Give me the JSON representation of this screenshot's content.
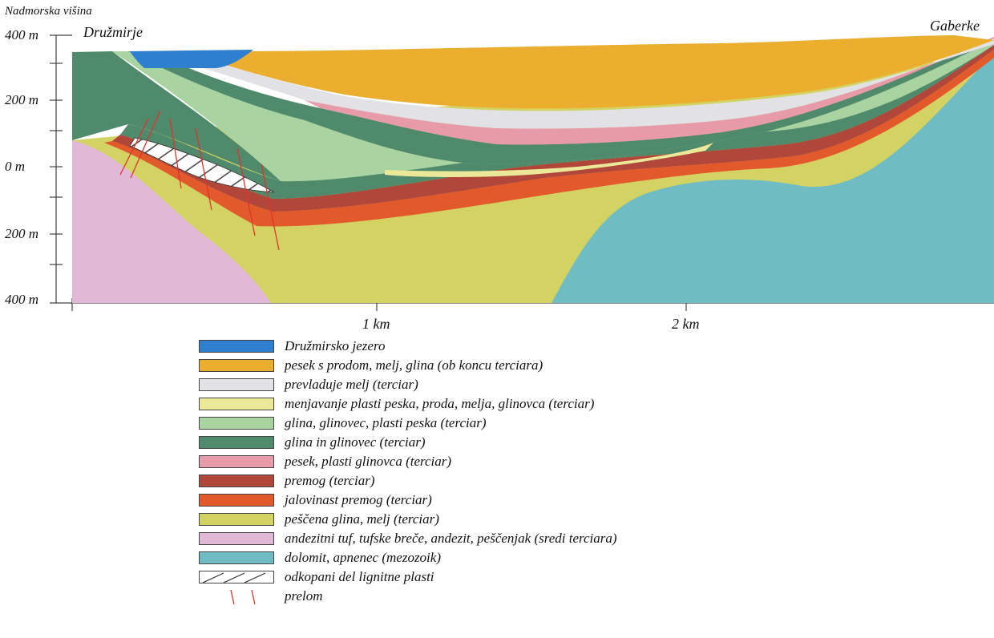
{
  "axis": {
    "title": "Nadmorska višina",
    "y_ticks": [
      "400 m",
      "200 m",
      "0 m",
      "200 m",
      "400 m"
    ],
    "x_ticks": [
      "1 km",
      "2 km"
    ]
  },
  "places": {
    "left": "Družmirje",
    "right": "Gaberke"
  },
  "colors": {
    "lake": "#2f7fcf",
    "sand_gravel": "#ecae2f",
    "silt": "#e2e2e6",
    "alternating": "#ece89a",
    "clay_light": "#a9d3a0",
    "clay_dark": "#4f8a6c",
    "sand_pink": "#e79aa8",
    "coal": "#b0473a",
    "waste_coal": "#e2592c",
    "sandy_clay": "#d3d364",
    "andesite": "#e1b9d6",
    "dolomite": "#6fbcc4",
    "fault": "#e0342a"
  },
  "legend": [
    {
      "key": "lake",
      "text": "Družmirsko jezero",
      "note": ""
    },
    {
      "key": "sand_gravel",
      "text": "pesek s prodom, melj, glina",
      "note": "(ob koncu terciara)"
    },
    {
      "key": "silt",
      "text": "prevladuje melj",
      "note": "(terciar)"
    },
    {
      "key": "alternating",
      "text": "menjavanje plasti peska, proda, melja, glinovca",
      "note": "(terciar)"
    },
    {
      "key": "clay_light",
      "text": "glina, glinovec, plasti peska",
      "note": "(terciar)"
    },
    {
      "key": "clay_dark",
      "text": "glina in glinovec",
      "note": "(terciar)"
    },
    {
      "key": "sand_pink",
      "text": "pesek, plasti glinovca",
      "note": "(terciar)"
    },
    {
      "key": "coal",
      "text": "premog",
      "note": "(terciar)"
    },
    {
      "key": "waste_coal",
      "text": "jalovinast premog",
      "note": "(terciar)"
    },
    {
      "key": "sandy_clay",
      "text": "peščena glina, melj",
      "note": "(terciar)"
    },
    {
      "key": "andesite",
      "text": "andezitni tuf, tufske breče, andezit, peščenjak",
      "note": "(sredi terciara)"
    },
    {
      "key": "dolomite",
      "text": "dolomit, apnenec",
      "note": "(mezozoik)"
    },
    {
      "key": "mined",
      "text": "odkopani del lignitne plasti",
      "note": ""
    },
    {
      "key": "fault",
      "text": "prelom",
      "note": ""
    }
  ]
}
